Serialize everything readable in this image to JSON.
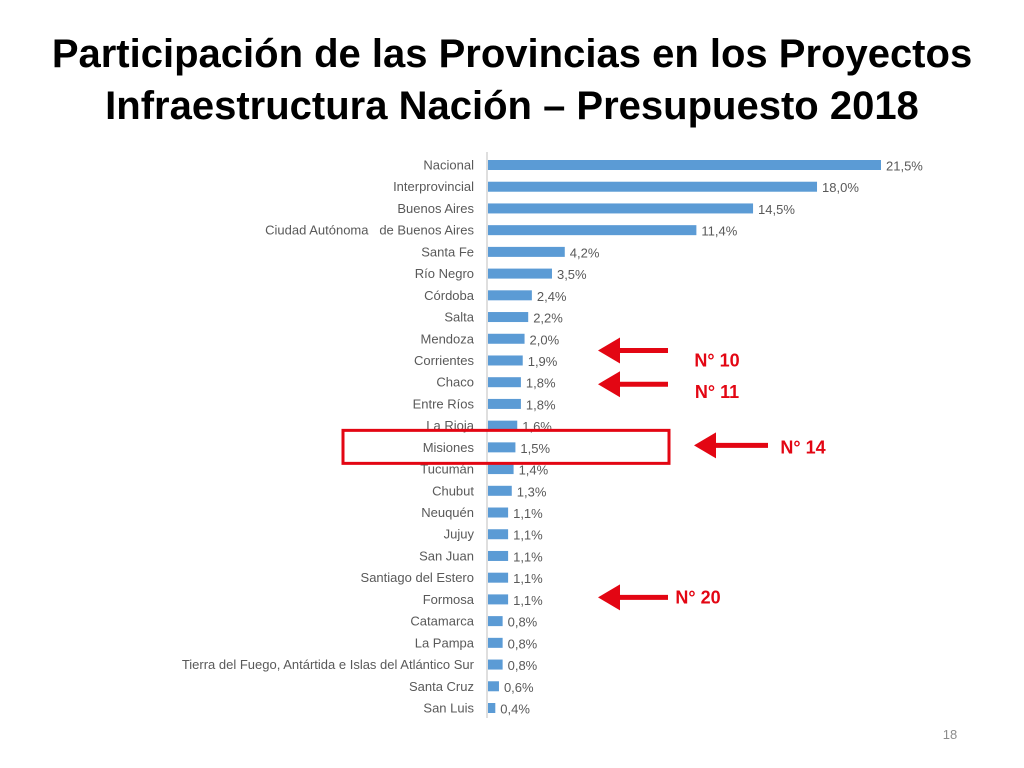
{
  "slide": {
    "title_line1": "Participación de las Provincias en los Proyectos",
    "title_line2": "Infraestructura Nación – Presupuesto 2018",
    "page_number": "18"
  },
  "colors": {
    "bar": "#5b9bd5",
    "highlight": "#e30613",
    "text": "#595959"
  },
  "chart_data": {
    "type": "bar",
    "orientation": "horizontal",
    "title": "Participación de las Provincias en los Proyectos Infraestructura Nación – Presupuesto 2018",
    "categories": [
      "Nacional",
      "Interprovincial",
      "Buenos Aires",
      "Ciudad Autónoma   de Buenos Aires",
      "Santa Fe",
      "Río Negro",
      "Córdoba",
      "Salta",
      "Mendoza",
      "Corrientes",
      "Chaco",
      "Entre Ríos",
      "La Rioja",
      "Misiones",
      "Tucumán",
      "Chubut",
      "Neuquén",
      "Jujuy",
      "San Juan",
      "Santiago del Estero",
      "Formosa",
      "Catamarca",
      "La Pampa",
      "Tierra del Fuego, Antártida e Islas del Atlántico Sur",
      "Santa Cruz",
      "San Luis"
    ],
    "values": [
      21.5,
      18.0,
      14.5,
      11.4,
      4.2,
      3.5,
      2.4,
      2.2,
      2.0,
      1.9,
      1.8,
      1.8,
      1.6,
      1.5,
      1.4,
      1.3,
      1.1,
      1.1,
      1.1,
      1.1,
      1.1,
      0.8,
      0.8,
      0.8,
      0.6,
      0.4
    ],
    "value_labels": [
      "21,5%",
      "18,0%",
      "14,5%",
      "11,4%",
      "4,2%",
      "3,5%",
      "2,4%",
      "2,2%",
      "2,0%",
      "1,9%",
      "1,8%",
      "1,8%",
      "1,6%",
      "1,5%",
      "1,4%",
      "1,3%",
      "1,1%",
      "1,1%",
      "1,1%",
      "1,1%",
      "1,1%",
      "0,8%",
      "0,8%",
      "0,8%",
      "0,6%",
      "0,4%"
    ],
    "xlim": [
      0,
      21.5
    ],
    "xlabel": "",
    "ylabel": "",
    "grid": false,
    "annotations": [
      {
        "category": "Corrientes",
        "label": "N° 10",
        "type": "arrow"
      },
      {
        "category": "Chaco",
        "label": "N° 11",
        "type": "arrow"
      },
      {
        "category": "Misiones",
        "label": "N° 14",
        "type": "arrow-box"
      },
      {
        "category": "Formosa",
        "label": "N° 20",
        "type": "arrow"
      }
    ]
  }
}
